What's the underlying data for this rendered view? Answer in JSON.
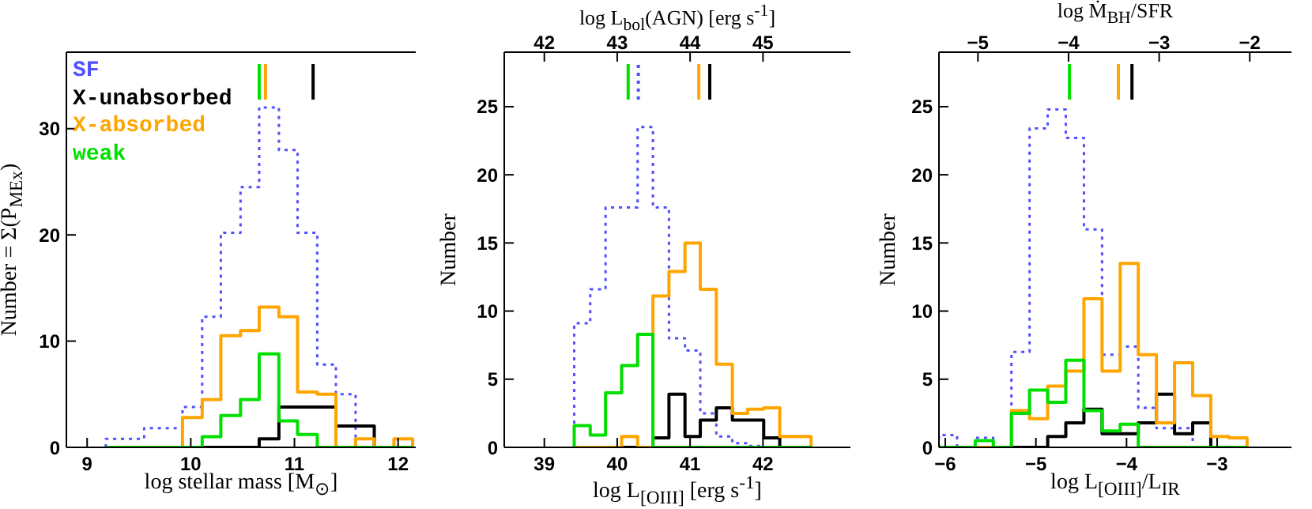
{
  "chart_data": [
    {
      "type": "histogram",
      "xlabel": "log stellar mass [M$_{⊙}$]",
      "ylabel": "Number = Σ(P$_{MEx}$)",
      "legend": "top left",
      "bins": [
        9.18,
        9.37,
        9.55,
        9.74,
        9.92,
        10.11,
        10.29,
        10.48,
        10.66,
        10.85,
        11.03,
        11.22,
        11.4,
        11.59,
        11.77,
        11.96,
        12.14
      ],
      "series": [
        {
          "name": "SF",
          "color": "#5050ff",
          "line_style": "dotted",
          "values": [
            0.8,
            0.8,
            1.8,
            1.8,
            3.8,
            12.3,
            20.2,
            24.5,
            32,
            28,
            20.2,
            7.8,
            5,
            0,
            0,
            0
          ]
        },
        {
          "name": "X-unabsorbed",
          "color": "#000000",
          "line_style": "solid",
          "values": [
            0,
            0,
            0,
            0,
            0,
            0,
            0,
            0,
            0.8,
            3.8,
            3.8,
            3.8,
            2,
            2,
            0,
            0
          ]
        },
        {
          "name": "X-absorbed",
          "color": "#ffa500",
          "line_style": "solid",
          "values": [
            0,
            0,
            0,
            0,
            2.8,
            4.5,
            10.5,
            11,
            13.2,
            12.3,
            5.2,
            5,
            0,
            0.8,
            0,
            0.8
          ]
        },
        {
          "name": "weak",
          "color": "#00e000",
          "line_style": "solid",
          "values": [
            0,
            0,
            0,
            0,
            0,
            1,
            3,
            4.5,
            8.8,
            2.5,
            1.2,
            0,
            0,
            0,
            0,
            0
          ]
        }
      ],
      "xlim": [
        8.8,
        12.17
      ],
      "xticks": [
        9,
        10,
        11,
        12
      ],
      "ylim": [
        0,
        37.2
      ],
      "yticks": [
        0,
        10,
        20,
        30
      ],
      "ref_lines": [
        {
          "axis": "x",
          "value": 10.66,
          "color": "#00e000"
        },
        {
          "axis": "x",
          "value": 10.72,
          "color": "#ffa500"
        },
        {
          "axis": "x",
          "value": 11.18,
          "color": "#000000"
        }
      ]
    },
    {
      "type": "histogram",
      "xlabel": "log L$_{[OIII]}$ [erg s$^{-1}$]",
      "ylabel": "Number",
      "x2label": "log L$_{bol}$(AGN) [erg s$^{-1}$]",
      "bins": [
        39.41,
        39.63,
        39.84,
        40.06,
        40.28,
        40.49,
        40.71,
        40.93,
        41.14,
        41.36,
        41.58,
        41.79,
        42.01,
        42.23,
        42.44,
        42.66
      ],
      "series": [
        {
          "color": "#5050ff",
          "line_style": "dotted",
          "values": [
            9.1,
            11.6,
            17.6,
            17.6,
            23.5,
            17.6,
            8,
            7.1,
            2.5,
            0.8,
            0.3,
            0.1,
            0,
            0,
            0
          ]
        },
        {
          "color": "#000000",
          "line_style": "solid",
          "values": [
            0,
            0,
            0,
            0,
            0,
            0.7,
            3.9,
            0.8,
            2,
            2.9,
            2,
            2,
            0.7,
            0,
            0
          ]
        },
        {
          "color": "#ffa500",
          "line_style": "solid",
          "values": [
            0,
            0,
            0,
            0.8,
            0,
            11.1,
            12.9,
            15,
            11.6,
            6.1,
            2.5,
            2.8,
            2.9,
            0.8,
            0.8
          ]
        },
        {
          "color": "#00e000",
          "line_style": "solid",
          "values": [
            1.6,
            0.9,
            4,
            6,
            8.3,
            0,
            0,
            0,
            0,
            0,
            0,
            0,
            0,
            0,
            0
          ]
        }
      ],
      "xlim": [
        38.45,
        43.2
      ],
      "xticks": [
        39,
        40,
        41,
        42
      ],
      "x2lim": [
        41.45,
        46.2
      ],
      "x2ticks": [
        42,
        43,
        44,
        45
      ],
      "ylim": [
        0,
        29
      ],
      "yticks": [
        0,
        5,
        10,
        15,
        20,
        25
      ],
      "ref_lines": [
        {
          "axis": "x",
          "value": 40.15,
          "color": "#00e000"
        },
        {
          "axis": "x",
          "value": 40.29,
          "color": "#5050ff",
          "line_style": "dotted"
        },
        {
          "axis": "x",
          "value": 41.12,
          "color": "#ffa500"
        },
        {
          "axis": "x",
          "value": 41.27,
          "color": "#000000"
        }
      ]
    },
    {
      "type": "histogram",
      "xlabel": "log L$_{[OIII]}$/L$_{IR}$",
      "ylabel": "Number",
      "x2label": "log Ṁ$_{BH}$/SFR",
      "bins": [
        -6.07,
        -5.87,
        -5.67,
        -5.47,
        -5.27,
        -5.07,
        -4.87,
        -4.67,
        -4.47,
        -4.27,
        -4.07,
        -3.87,
        -3.67,
        -3.47,
        -3.27,
        -3.07,
        -2.87,
        -2.67
      ],
      "series": [
        {
          "color": "#5050ff",
          "line_style": "dotted",
          "values": [
            0.9,
            0,
            0.7,
            0,
            7,
            23.4,
            24.8,
            22.7,
            16,
            6.8,
            7.4,
            2.9,
            1.4,
            1.4,
            0,
            0,
            0
          ]
        },
        {
          "color": "#000000",
          "line_style": "solid",
          "values": [
            0,
            0,
            0,
            0,
            0,
            0,
            0.8,
            1.8,
            2.8,
            1,
            1,
            1.8,
            3.9,
            1,
            1.8,
            0,
            0
          ]
        },
        {
          "color": "#ffa500",
          "line_style": "solid",
          "values": [
            0,
            0,
            0,
            0,
            2.7,
            2.1,
            4.5,
            5.6,
            10.9,
            5.6,
            13.5,
            6.8,
            1.8,
            6.2,
            3.8,
            0.8,
            0.7
          ]
        },
        {
          "color": "#00e000",
          "line_style": "solid",
          "values": [
            0,
            0,
            0.5,
            0,
            2.5,
            4.2,
            3.3,
            6.4,
            2.7,
            1.2,
            1.7,
            0,
            0,
            0,
            0,
            0,
            0
          ]
        }
      ],
      "xlim": [
        -6.07,
        -2.18
      ],
      "xticks": [
        -6,
        -5,
        -4,
        -3
      ],
      "x2lim": [
        -5.43,
        -1.54
      ],
      "x2ticks": [
        -5,
        -4,
        -3,
        -2
      ],
      "ylim": [
        0,
        29
      ],
      "yticks": [
        0,
        5,
        10,
        15,
        20,
        25
      ],
      "ref_lines": [
        {
          "axis": "x",
          "value": -4.63,
          "color": "#00e000"
        },
        {
          "axis": "x",
          "value": -4.09,
          "color": "#ffa500"
        },
        {
          "axis": "x",
          "value": -3.94,
          "color": "#000000"
        }
      ]
    }
  ]
}
